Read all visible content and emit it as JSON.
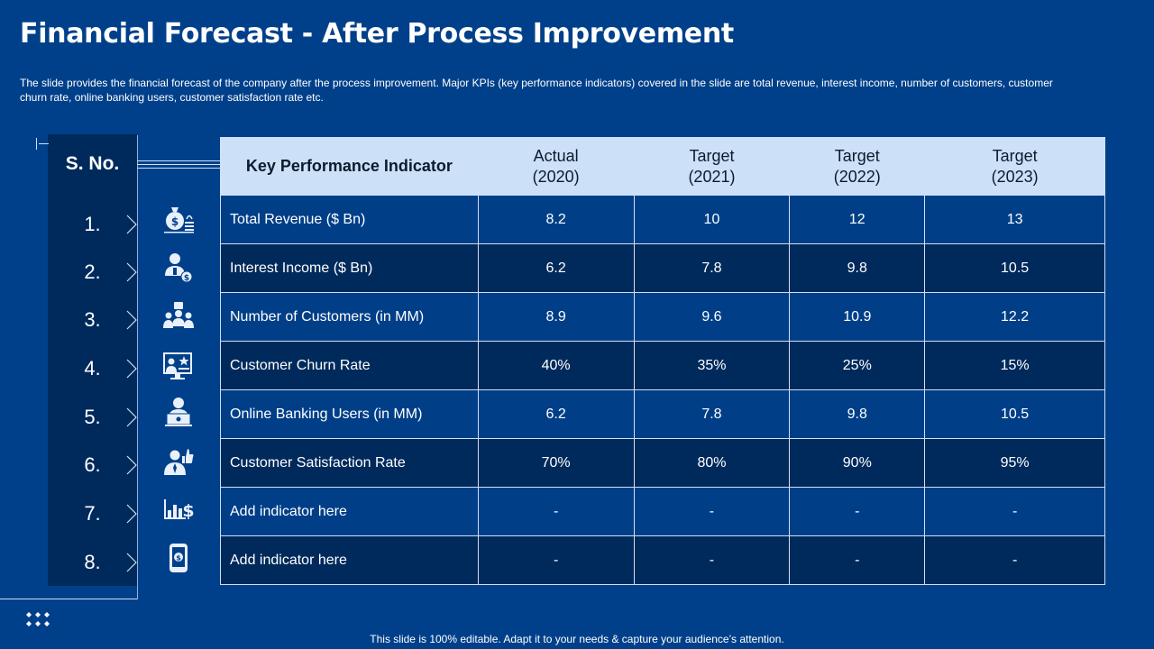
{
  "page": {
    "title": "Financial Forecast - After Process Improvement",
    "subtitle": "The slide provides  the financial forecast of the company after the process improvement.  Major KPIs (key performance  indicators) covered  in the slide are total revenue,  interest income, number of customers, customer churn rate, online banking users, customer satisfaction rate etc.",
    "footer": "This slide is 100% editable. Adapt it to your needs & capture your audience’s attention."
  },
  "sno": {
    "header": "S. No.",
    "numbers": [
      "1.",
      "2.",
      "3.",
      "4.",
      "5.",
      "6.",
      "7.",
      "8."
    ],
    "icons": [
      "money-bag-icon",
      "person-dollar-icon",
      "customers-group-icon",
      "monitor-rating-icon",
      "online-user-laptop-icon",
      "team-thumbs-up-icon",
      "bar-chart-dollar-icon",
      "mobile-payment-icon"
    ]
  },
  "table": {
    "headers": {
      "kpi": "Key Performance Indicator",
      "c1_line1": "Actual",
      "c1_line2": "(2020)",
      "c2_line1": "Target",
      "c2_line2": "(2021)",
      "c3_line1": "Target",
      "c3_line2": "(2022)",
      "c4_line1": "Target",
      "c4_line2": "(2023)"
    },
    "rows": [
      {
        "name": "Total Revenue  ($ Bn)",
        "values": [
          "8.2",
          "10",
          "12",
          "13"
        ]
      },
      {
        "name": "Interest Income  ($ Bn)",
        "values": [
          "6.2",
          "7.8",
          "9.8",
          "10.5"
        ]
      },
      {
        "name": "Number of Customers (in MM)",
        "values": [
          "8.9",
          "9.6",
          "10.9",
          "12.2"
        ]
      },
      {
        "name": "Customer Churn Rate",
        "values": [
          "40%",
          "35%",
          "25%",
          "15%"
        ]
      },
      {
        "name": "Online Banking Users (in MM)",
        "values": [
          "6.2",
          "7.8",
          "9.8",
          "10.5"
        ]
      },
      {
        "name": "Customer Satisfaction Rate",
        "values": [
          "70%",
          "80%",
          "90%",
          "95%"
        ]
      },
      {
        "name": "Add indicator here",
        "values": [
          "-",
          "-",
          "-",
          "-"
        ]
      },
      {
        "name": "Add indicator here",
        "values": [
          "-",
          "-",
          "-",
          "-"
        ]
      }
    ]
  },
  "colors": {
    "background": "#00408a",
    "dark_row": "#002a5c",
    "header_fill": "#cce1f7"
  }
}
